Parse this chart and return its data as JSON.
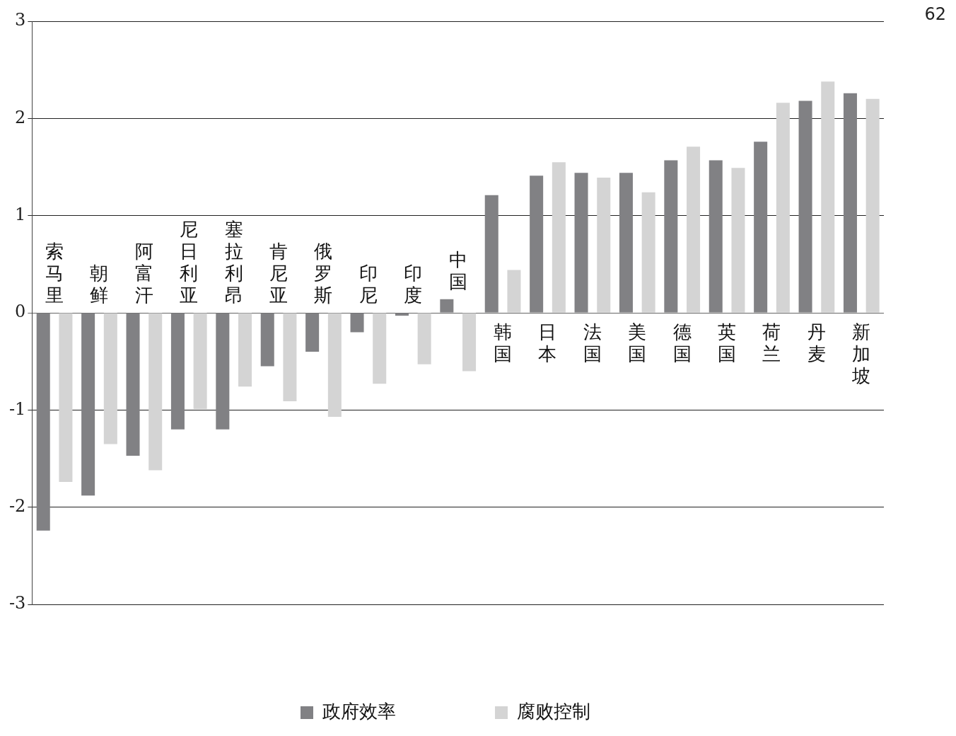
{
  "chart_data": {
    "type": "bar",
    "categories": [
      "索马里",
      "朝鲜",
      "阿富汗",
      "尼日利亚",
      "塞拉利昂",
      "肯尼亚",
      "俄罗斯",
      "印尼",
      "印度",
      "中国",
      "韩国",
      "日本",
      "法国",
      "美国",
      "德国",
      "英国",
      "荷兰",
      "丹麦",
      "新加坡"
    ],
    "series": [
      {
        "name": "政府效率",
        "color": "#818184",
        "values": [
          -2.24,
          -1.88,
          -1.47,
          -1.2,
          -1.2,
          -0.55,
          -0.4,
          -0.2,
          -0.03,
          0.14,
          1.21,
          1.41,
          1.44,
          1.44,
          1.57,
          1.57,
          1.76,
          2.18,
          2.26
        ]
      },
      {
        "name": "腐败控制",
        "color": "#d4d4d4",
        "values": [
          -1.74,
          -1.35,
          -1.62,
          -0.99,
          -0.76,
          -0.91,
          -1.07,
          -0.73,
          -0.53,
          -0.6,
          0.44,
          1.55,
          1.39,
          1.24,
          1.71,
          1.49,
          2.16,
          2.38,
          2.2
        ]
      }
    ],
    "ylim": [
      -3,
      3
    ],
    "yticks": [
      -3,
      -2,
      -1,
      0,
      1,
      2,
      3
    ],
    "grid": "y",
    "legend": "bottom",
    "annotations": [
      "62"
    ]
  }
}
